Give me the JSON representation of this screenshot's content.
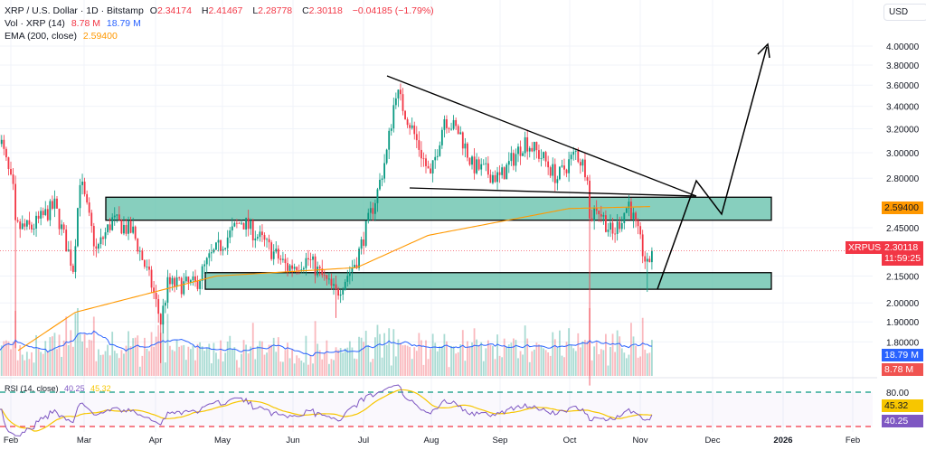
{
  "header": {
    "title": "XRP / U.S. Dollar · 1D · Bitstamp",
    "o_label": "O",
    "o": "2.34174",
    "h_label": "H",
    "h": "2.41467",
    "l_label": "L",
    "l": "2.28778",
    "c_label": "C",
    "c": "2.30118",
    "change": "−0.04185 (−1.79%)"
  },
  "volume_legend": {
    "label": "Vol · XRP (14)",
    "vol": "8.78 M",
    "ma": "18.79 M"
  },
  "ema_legend": {
    "label": "EMA (200, close)",
    "value": "2.59400"
  },
  "rsi_legend": {
    "label": "RSI (14, close)",
    "rsi": "40.25",
    "ma": "45.32"
  },
  "currency": "USD",
  "symbol_tag": "XRPUSD",
  "countdown": "11:59:25",
  "colors": {
    "up": "#089981",
    "down": "#f23645",
    "ema": "#ff9800",
    "vol_ma": "#2962ff",
    "rsi": "#7e57c2",
    "rsi_ma": "#f7c600",
    "zone": "#5fbfa8"
  },
  "chart_data": {
    "type": "candlestick",
    "scale": "log",
    "y_ticks": [
      "4.00000",
      "3.80000",
      "3.60000",
      "3.40000",
      "3.20000",
      "3.00000",
      "2.80000",
      "2.45000",
      "2.15000",
      "2.00000",
      "1.90000",
      "1.80000"
    ],
    "x_ticks": [
      "Feb",
      "Mar",
      "Apr",
      "May",
      "Jun",
      "Jul",
      "Aug",
      "Sep",
      "Oct",
      "Nov",
      "Dec",
      "2026",
      "Feb"
    ],
    "rsi_ticks": [
      "80.00"
    ],
    "last_price": 2.30118,
    "ema_last": 2.594,
    "close_path": [
      [
        "2025-01-27",
        3.15
      ],
      [
        "2025-02-02",
        2.7
      ],
      [
        "2025-02-03",
        2.45
      ],
      [
        "2025-02-10",
        2.45
      ],
      [
        "2025-02-20",
        2.6
      ],
      [
        "2025-02-28",
        2.2
      ],
      [
        "2025-03-03",
        2.8
      ],
      [
        "2025-03-10",
        2.3
      ],
      [
        "2025-03-17",
        2.5
      ],
      [
        "2025-03-26",
        2.42
      ],
      [
        "2025-04-03",
        2.1
      ],
      [
        "2025-04-07",
        1.9
      ],
      [
        "2025-04-10",
        2.1
      ],
      [
        "2025-04-22",
        2.1
      ],
      [
        "2025-04-28",
        2.25
      ],
      [
        "2025-05-12",
        2.5
      ],
      [
        "2025-05-20",
        2.38
      ],
      [
        "2025-06-01",
        2.2
      ],
      [
        "2025-06-10",
        2.25
      ],
      [
        "2025-06-22",
        2.05
      ],
      [
        "2025-07-01",
        2.25
      ],
      [
        "2025-07-10",
        2.7
      ],
      [
        "2025-07-14",
        3.0
      ],
      [
        "2025-07-18",
        3.55
      ],
      [
        "2025-07-25",
        3.2
      ],
      [
        "2025-08-02",
        2.8
      ],
      [
        "2025-08-08",
        3.3
      ],
      [
        "2025-08-15",
        3.15
      ],
      [
        "2025-08-20",
        2.9
      ],
      [
        "2025-09-01",
        2.8
      ],
      [
        "2025-09-12",
        3.1
      ],
      [
        "2025-09-20",
        2.95
      ],
      [
        "2025-09-26",
        2.8
      ],
      [
        "2025-10-04",
        3.0
      ],
      [
        "2025-10-09",
        2.85
      ],
      [
        "2025-10-10",
        2.5
      ],
      [
        "2025-10-13",
        2.6
      ],
      [
        "2025-10-20",
        2.4
      ],
      [
        "2025-10-27",
        2.62
      ],
      [
        "2025-11-03",
        2.25
      ],
      [
        "2025-11-04",
        2.2
      ],
      [
        "2025-11-06",
        2.3
      ]
    ],
    "wick_lows": [
      [
        "2025-02-03",
        1.77
      ],
      [
        "2025-04-07",
        1.7
      ],
      [
        "2025-06-22",
        1.92
      ],
      [
        "2025-10-10",
        1.6
      ],
      [
        "2025-11-04",
        2.06
      ]
    ],
    "ema_path": [
      [
        "2025-01-27",
        1.7
      ],
      [
        "2025-03-01",
        1.95
      ],
      [
        "2025-05-01",
        2.15
      ],
      [
        "2025-07-01",
        2.2
      ],
      [
        "2025-08-01",
        2.4
      ],
      [
        "2025-10-01",
        2.58
      ],
      [
        "2025-11-06",
        2.594
      ]
    ],
    "zones": [
      {
        "top": 2.66,
        "bottom": 2.5
      },
      {
        "top": 2.17,
        "bottom": 2.075
      }
    ]
  }
}
